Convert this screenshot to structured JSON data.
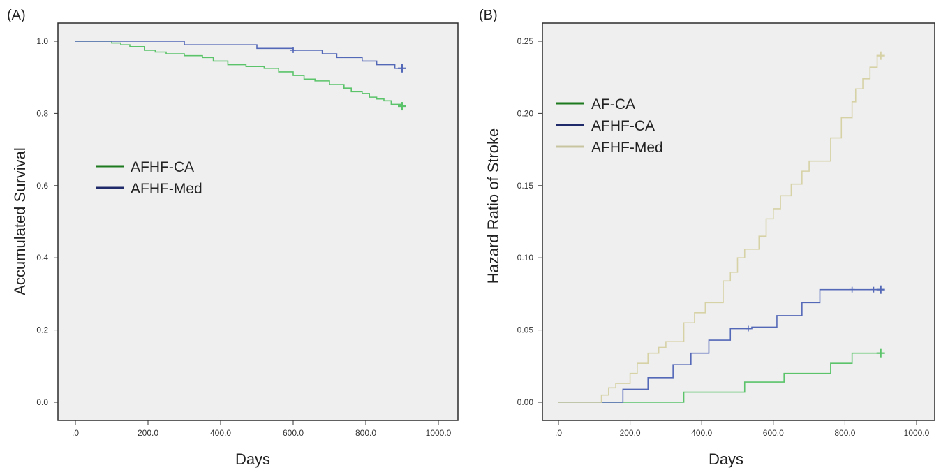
{
  "chart_data": [
    {
      "panel_label": "(A)",
      "type": "line",
      "subtype": "kaplan-meier step",
      "xlabel": "Days",
      "ylabel": "Accumulated Survival",
      "xlim": [
        0,
        1000
      ],
      "ylim": [
        0,
        1.0
      ],
      "x_ticks": [
        0,
        200,
        400,
        600,
        800,
        1000
      ],
      "x_tick_labels": [
        ".0",
        "200.0",
        "400.0",
        "600.0",
        "800.0",
        "1000.0"
      ],
      "y_ticks": [
        0,
        0.2,
        0.4,
        0.6,
        0.8,
        1.0
      ],
      "y_tick_labels": [
        "0.0",
        "0.2",
        "0.4",
        "0.6",
        "0.8",
        "1.0"
      ],
      "grid": false,
      "legend_position": "center-left",
      "legend": [
        {
          "label": "AFHF-CA",
          "color": "#1e7a1e"
        },
        {
          "label": "AFHF-Med",
          "color": "#1f2a6b"
        }
      ],
      "series": [
        {
          "name": "AFHF-CA",
          "color": "#5bc46a",
          "x": [
            0,
            100,
            125,
            150,
            190,
            220,
            250,
            300,
            350,
            380,
            420,
            470,
            520,
            560,
            600,
            630,
            660,
            700,
            740,
            760,
            790,
            810,
            830,
            850,
            870,
            900
          ],
          "y": [
            1.0,
            0.995,
            0.99,
            0.985,
            0.975,
            0.97,
            0.965,
            0.96,
            0.955,
            0.945,
            0.935,
            0.93,
            0.925,
            0.915,
            0.905,
            0.895,
            0.89,
            0.88,
            0.87,
            0.86,
            0.855,
            0.845,
            0.84,
            0.835,
            0.825,
            0.82
          ],
          "censor_x": [
            900
          ],
          "censor_y": [
            0.82
          ]
        },
        {
          "name": "AFHF-Med",
          "color": "#5468b8",
          "x": [
            0,
            300,
            500,
            600,
            680,
            720,
            790,
            830,
            880,
            900
          ],
          "y": [
            1.0,
            0.99,
            0.98,
            0.975,
            0.965,
            0.955,
            0.945,
            0.935,
            0.925,
            0.925
          ],
          "censor_x": [
            600,
            900
          ],
          "censor_y": [
            0.975,
            0.925
          ]
        }
      ]
    },
    {
      "panel_label": "(B)",
      "type": "line",
      "subtype": "cumulative hazard step",
      "xlabel": "Days",
      "ylabel": "Hazard Ratio of Stroke",
      "xlim": [
        0,
        1000
      ],
      "ylim": [
        0,
        0.25
      ],
      "x_ticks": [
        0,
        200,
        400,
        600,
        800,
        1000
      ],
      "x_tick_labels": [
        ".0",
        "200.0",
        "400.0",
        "600.0",
        "800.0",
        "1000.0"
      ],
      "y_ticks": [
        0,
        0.05,
        0.1,
        0.15,
        0.2,
        0.25
      ],
      "y_tick_labels": [
        "0.00",
        "0.05",
        "0.10",
        "0.15",
        "0.20",
        "0.25"
      ],
      "grid": false,
      "legend_position": "top-left",
      "legend": [
        {
          "label": "AF-CA",
          "color": "#1e7a1e"
        },
        {
          "label": "AFHF-CA",
          "color": "#1f2a6b"
        },
        {
          "label": "AFHF-Med",
          "color": "#c8c4a0"
        }
      ],
      "series": [
        {
          "name": "AF-CA",
          "color": "#5bc46a",
          "x": [
            0,
            350,
            520,
            630,
            760,
            820,
            900
          ],
          "y": [
            0,
            0.007,
            0.014,
            0.02,
            0.027,
            0.034,
            0.034
          ],
          "censor_x": [
            900
          ],
          "censor_y": [
            0.034
          ]
        },
        {
          "name": "AFHF-CA",
          "color": "#5468b8",
          "x": [
            0,
            180,
            250,
            320,
            370,
            420,
            480,
            540,
            610,
            680,
            730,
            820,
            900
          ],
          "y": [
            0,
            0.009,
            0.017,
            0.026,
            0.034,
            0.043,
            0.051,
            0.052,
            0.06,
            0.069,
            0.078,
            0.078,
            0.078
          ],
          "censor_x": [
            530,
            820,
            880,
            900
          ],
          "censor_y": [
            0.051,
            0.078,
            0.078,
            0.078
          ]
        },
        {
          "name": "AFHF-Med",
          "color": "#d6d2a6",
          "x": [
            0,
            120,
            140,
            160,
            200,
            220,
            250,
            280,
            300,
            350,
            380,
            410,
            460,
            480,
            500,
            520,
            560,
            580,
            600,
            620,
            650,
            680,
            700,
            760,
            790,
            820,
            830,
            850,
            870,
            890,
            900
          ],
          "y": [
            0,
            0.005,
            0.01,
            0.013,
            0.02,
            0.027,
            0.034,
            0.038,
            0.042,
            0.055,
            0.062,
            0.069,
            0.084,
            0.09,
            0.1,
            0.106,
            0.115,
            0.127,
            0.134,
            0.143,
            0.151,
            0.16,
            0.167,
            0.183,
            0.197,
            0.208,
            0.217,
            0.224,
            0.232,
            0.24,
            0.24
          ],
          "censor_x": [
            900
          ],
          "censor_y": [
            0.24
          ]
        }
      ]
    }
  ]
}
